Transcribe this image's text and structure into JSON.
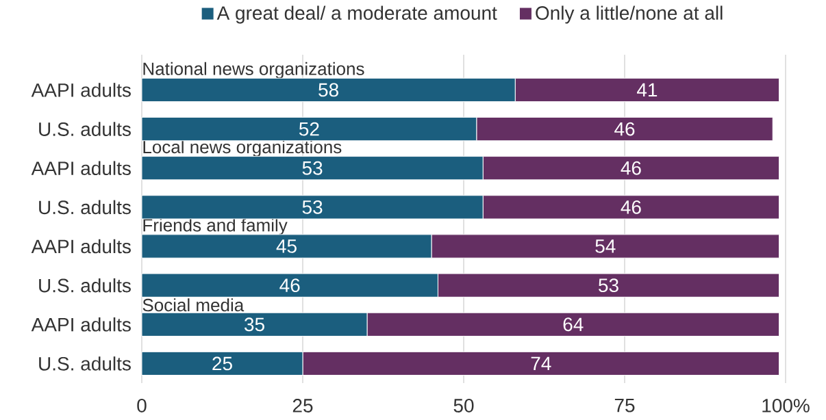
{
  "chart_data": {
    "type": "bar",
    "orientation": "horizontal",
    "stacked": true,
    "categories": [
      "AAPI adults",
      "U.S. adults",
      "AAPI adults",
      "U.S. adults",
      "AAPI adults",
      "U.S. adults",
      "AAPI adults",
      "U.S. adults"
    ],
    "series": [
      {
        "name": "A great deal/ a moderate amount",
        "color": "#1b5e7e",
        "values": [
          58,
          52,
          53,
          53,
          45,
          46,
          35,
          25
        ]
      },
      {
        "name": "Only a little/none at all",
        "color": "#642f62",
        "values": [
          41,
          46,
          46,
          46,
          54,
          53,
          64,
          74
        ]
      }
    ],
    "annotations": [
      "National news organizations",
      "Local news organizations",
      "Friends and family",
      "Social media"
    ],
    "xlim": [
      0,
      100
    ],
    "xticks": [
      0,
      25,
      50,
      75,
      {
        "value": 100,
        "label": "100%"
      }
    ],
    "grid": "x",
    "legend": "top",
    "data_labels": true
  }
}
